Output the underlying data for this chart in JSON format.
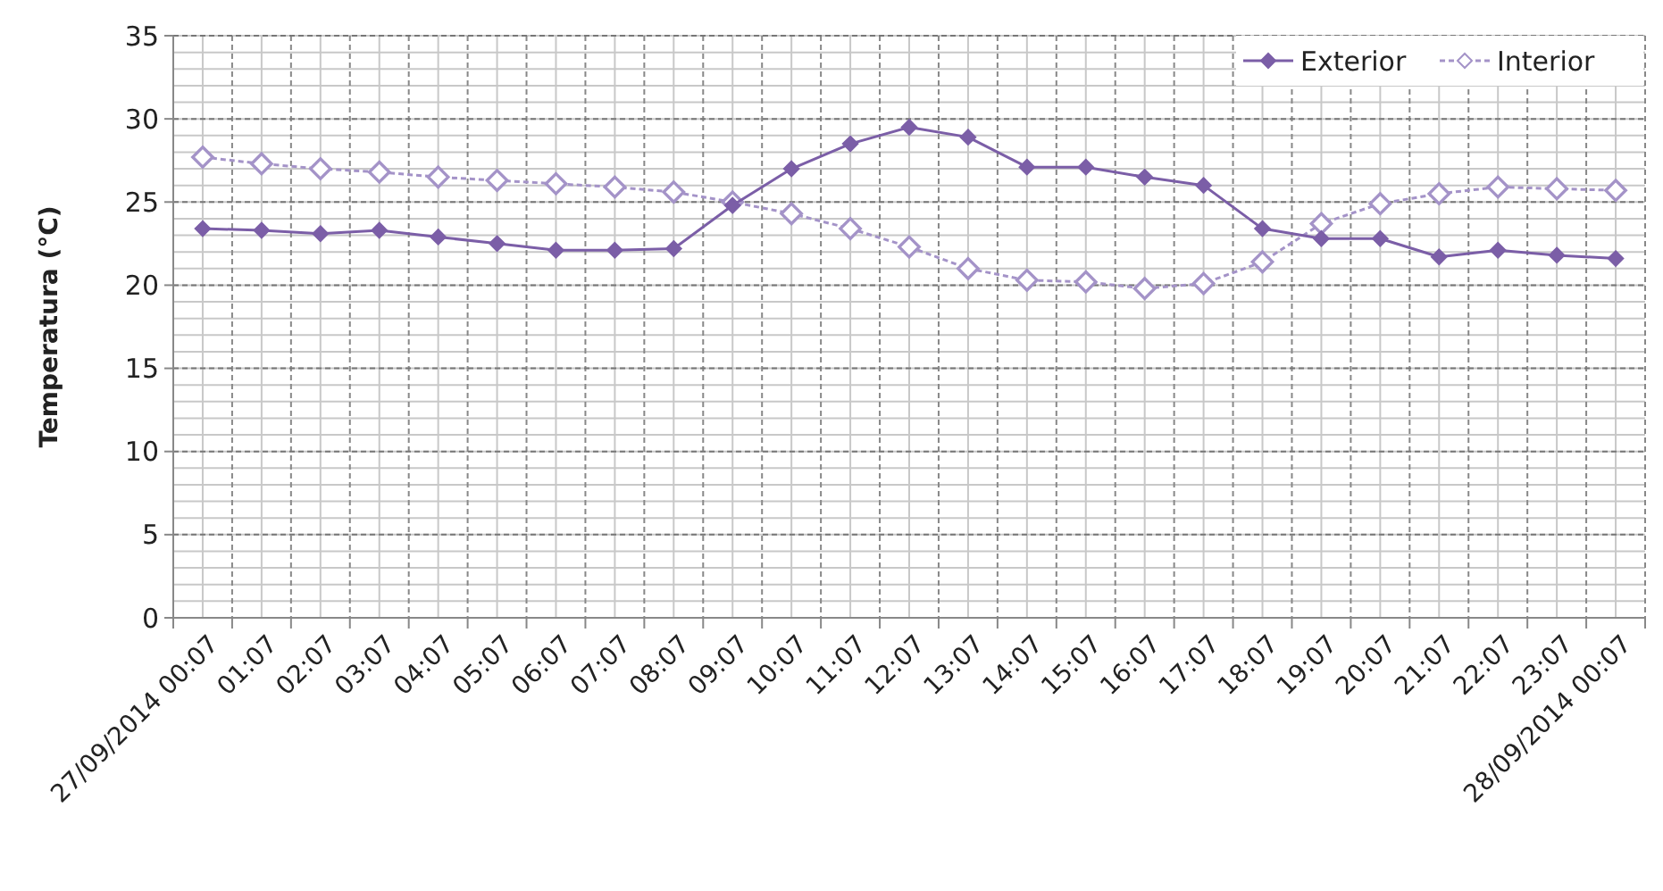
{
  "chart_data": {
    "type": "line",
    "ylabel": "Temperatura (°C)",
    "categories": [
      "27/09/2014 00:07",
      "01:07",
      "02:07",
      "03:07",
      "04:07",
      "05:07",
      "06:07",
      "07:07",
      "08:07",
      "09:07",
      "10:07",
      "11:07",
      "12:07",
      "13:07",
      "14:07",
      "15:07",
      "16:07",
      "17:07",
      "18:07",
      "19:07",
      "20:07",
      "21:07",
      "22:07",
      "23:07",
      "28/09/2014 00:07"
    ],
    "series": [
      {
        "name": "Exterior",
        "color": "#7b5ea7",
        "marker": "diamond",
        "line_style": "solid",
        "values": [
          23.4,
          23.3,
          23.1,
          23.3,
          22.9,
          22.5,
          22.1,
          22.1,
          22.2,
          24.8,
          27.0,
          28.5,
          29.5,
          28.9,
          27.1,
          27.1,
          26.5,
          26.0,
          23.4,
          22.8,
          22.8,
          21.7,
          22.1,
          21.8,
          21.6
        ]
      },
      {
        "name": "Interior",
        "color": "#a493c8",
        "marker": "diamond",
        "line_style": "dashed",
        "values": [
          27.7,
          27.3,
          27.0,
          26.8,
          26.5,
          26.3,
          26.1,
          25.9,
          25.6,
          25.0,
          24.3,
          23.4,
          22.3,
          21.0,
          20.3,
          20.2,
          19.8,
          20.1,
          21.4,
          23.7,
          24.9,
          25.5,
          25.9,
          25.8,
          25.7
        ]
      }
    ],
    "ylim": [
      0,
      35
    ],
    "yticks": [
      0,
      5,
      10,
      15,
      20,
      25,
      30,
      35
    ],
    "grid": true,
    "legend": "top right"
  }
}
